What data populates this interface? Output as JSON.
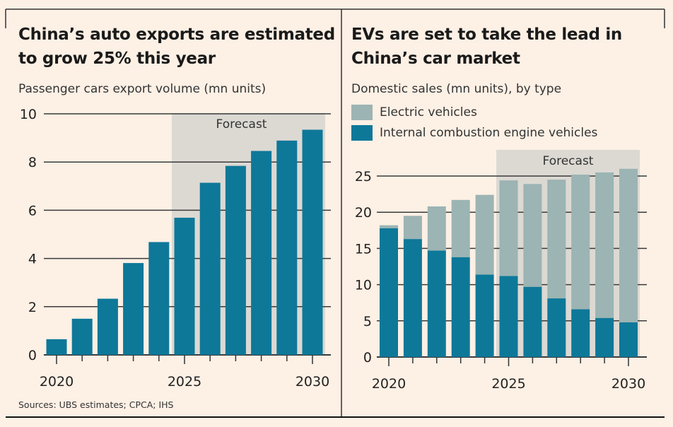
{
  "colors": {
    "bar": "#0e7899",
    "ev": "#9cb4b3",
    "forecast": "#dcd9d3",
    "grid": "#3a3a3a",
    "background": "#fdf0e5"
  },
  "chart_data": [
    {
      "type": "bar",
      "title": "China’s auto exports are estimated to grow 25% this year",
      "subtitle": "Passenger cars export volume (mn units)",
      "categories": [
        2020,
        2021,
        2022,
        2023,
        2024,
        2025,
        2026,
        2027,
        2028,
        2029,
        2030
      ],
      "values": [
        0.65,
        1.5,
        2.33,
        3.81,
        4.68,
        5.69,
        7.14,
        7.84,
        8.46,
        8.89,
        9.34
      ],
      "ylim": [
        0,
        10
      ],
      "yticks": [
        0,
        2,
        4,
        6,
        8,
        10
      ],
      "xtick_labels": [
        "2020",
        "2025",
        "2030"
      ],
      "annotation": "Forecast",
      "forecast_range": [
        2025,
        2030
      ],
      "grid": true
    },
    {
      "type": "bar",
      "stacked": true,
      "title": "EVs are set to take the lead in China’s car market",
      "subtitle": "Domestic sales (mn units), by type",
      "categories": [
        2020,
        2021,
        2022,
        2023,
        2024,
        2025,
        2026,
        2027,
        2028,
        2029,
        2030
      ],
      "series": [
        {
          "name": "Internal combustion engine vehicles",
          "values": [
            17.8,
            16.3,
            14.7,
            13.8,
            11.4,
            11.2,
            9.7,
            8.1,
            6.6,
            5.4,
            4.8
          ]
        },
        {
          "name": "Electric vehicles",
          "values": [
            0.4,
            3.2,
            6.1,
            7.9,
            11.0,
            13.2,
            14.2,
            16.4,
            18.6,
            20.1,
            21.2
          ]
        }
      ],
      "ylim": [
        0,
        25
      ],
      "yticks": [
        0,
        5,
        10,
        15,
        20,
        25
      ],
      "xtick_labels": [
        "2020",
        "2025",
        "2030"
      ],
      "annotation": "Forecast",
      "forecast_range": [
        2025,
        2030
      ],
      "legend_position": "top-left",
      "grid": true
    }
  ],
  "source": "Sources: UBS estimates; CPCA; IHS"
}
